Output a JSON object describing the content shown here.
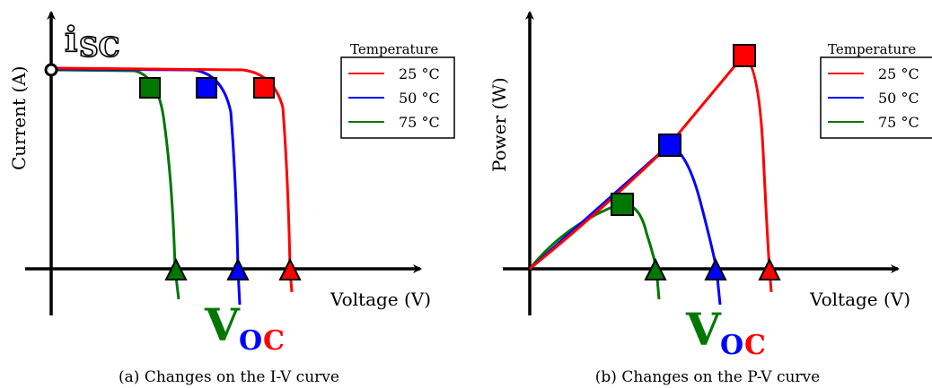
{
  "colors": {
    "t25": "#ff0000",
    "t50": "#0000ff",
    "t75": "#007700",
    "axis": "#000000"
  },
  "legend": {
    "title": "Temperature",
    "entries": [
      "25 °C",
      "50 °C",
      "75 °C"
    ]
  },
  "iv_plot": {
    "ylabel": "Current (A)",
    "xlabel": "Voltage (V)",
    "isc_main": "i",
    "isc_sub": "SC",
    "caption": "(a) Changes on the I-V curve"
  },
  "pv_plot": {
    "ylabel": "Power (W)",
    "xlabel": "Voltage (V)",
    "caption": "(b) Changes on the P-V curve"
  },
  "voc": {
    "main": "V",
    "sub_o": "O",
    "sub_c": "C"
  },
  "markers": {
    "square": "maximum power point",
    "triangle": "open-circuit voltage",
    "circle": "short-circuit current"
  }
}
